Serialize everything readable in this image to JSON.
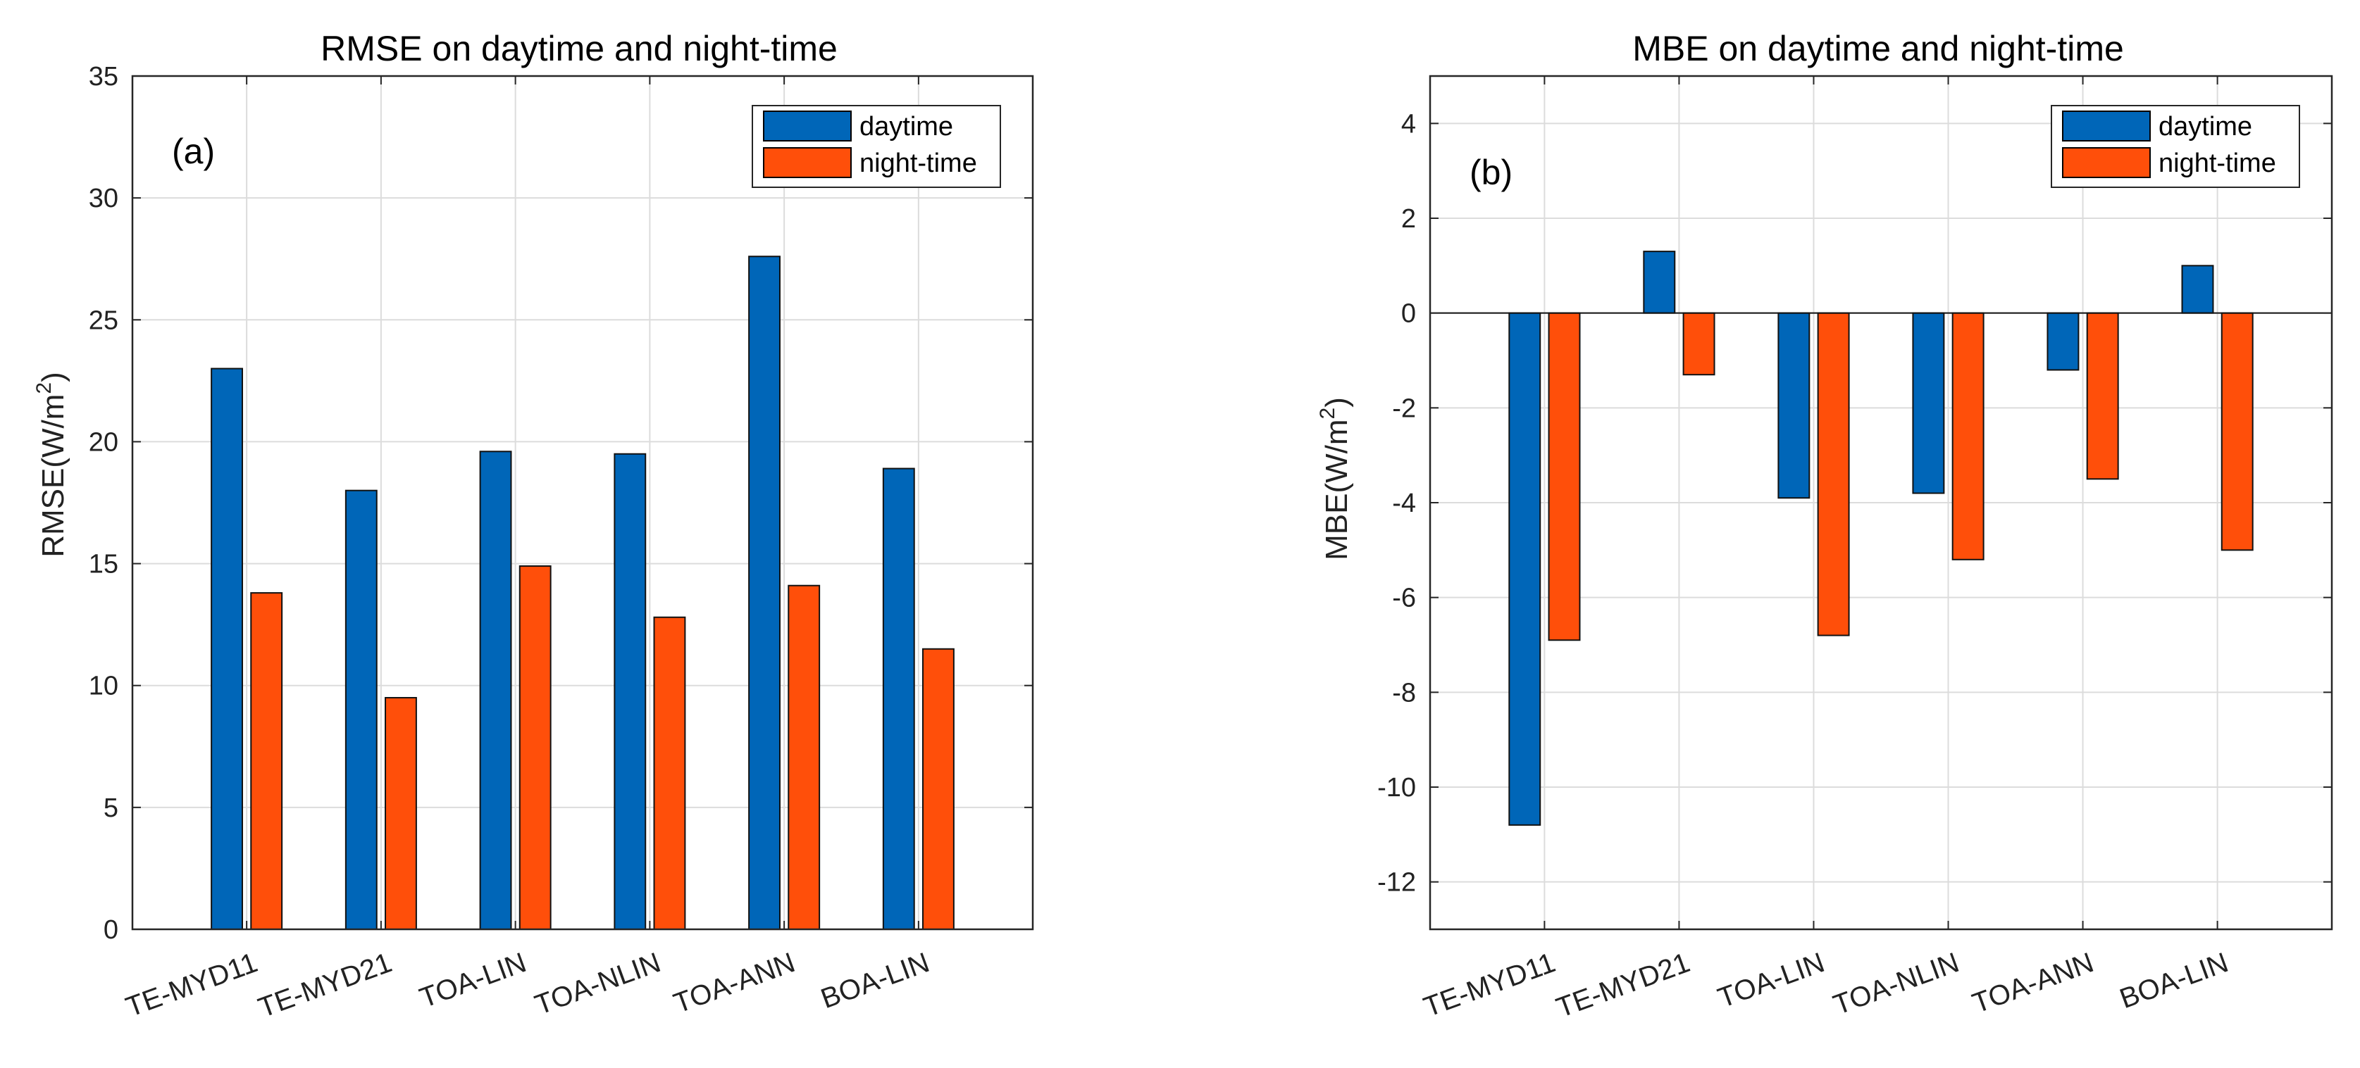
{
  "colors": {
    "daytime": "#0066b8",
    "nighttime": "#ff4f0a",
    "grid": "#dcdcdc",
    "axis": "#262626"
  },
  "chart_data": [
    {
      "type": "bar",
      "title": "RMSE on daytime and night-time",
      "panel_label": "(a)",
      "ylabel_main": "RMSE(W/m",
      "ylabel_sup": "2",
      "ylabel_end": ")",
      "categories": [
        "TE-MYD11",
        "TE-MYD21",
        "TOA-LIN",
        "TOA-NLIN",
        "TOA-ANN",
        "BOA-LIN"
      ],
      "series": [
        {
          "name": "daytime",
          "values": [
            23.0,
            18.0,
            19.6,
            19.5,
            27.6,
            18.9
          ]
        },
        {
          "name": "night-time",
          "values": [
            13.8,
            9.5,
            14.9,
            12.8,
            14.1,
            11.5
          ]
        }
      ],
      "ylim": [
        0,
        35
      ],
      "yticks": [
        0,
        5,
        10,
        15,
        20,
        25,
        30,
        35
      ],
      "grid": true,
      "legend_position": "top-right"
    },
    {
      "type": "bar",
      "title": "MBE on daytime and night-time",
      "panel_label": "(b)",
      "ylabel_main": "MBE(W/m",
      "ylabel_sup": "2",
      "ylabel_end": ")",
      "categories": [
        "TE-MYD11",
        "TE-MYD21",
        "TOA-LIN",
        "TOA-NLIN",
        "TOA-ANN",
        "BOA-LIN"
      ],
      "series": [
        {
          "name": "daytime",
          "values": [
            -10.8,
            1.3,
            -3.9,
            -3.8,
            -1.2,
            1.0
          ]
        },
        {
          "name": "night-time",
          "values": [
            -6.9,
            -1.3,
            -6.8,
            -5.2,
            -3.5,
            -5.0
          ]
        }
      ],
      "ylim": [
        -13,
        5
      ],
      "yticks": [
        -12,
        -10,
        -8,
        -6,
        -4,
        -2,
        0,
        2,
        4
      ],
      "grid": true,
      "legend_position": "top-right"
    }
  ]
}
